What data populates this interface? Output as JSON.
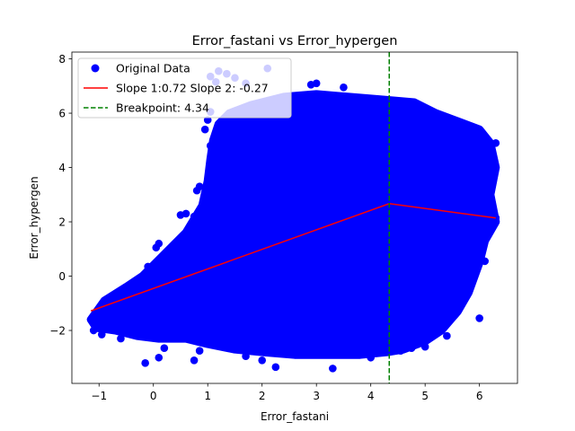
{
  "chart_data": {
    "type": "scatter",
    "title": "Error_fastani vs Error_hypergen",
    "xlabel": "Error_fastani",
    "ylabel": "Error_hypergen",
    "xlim": [
      -1.5,
      6.7
    ],
    "ylim": [
      -3.95,
      8.25
    ],
    "xticks": [
      -1,
      0,
      1,
      2,
      3,
      4,
      5,
      6
    ],
    "yticks": [
      -2,
      0,
      2,
      4,
      6,
      8
    ],
    "grid": false,
    "legend_position": "top-left",
    "colors": {
      "points": "#0000ff",
      "fit": "#ff0000",
      "breakpoint": "#008000"
    },
    "legend": [
      {
        "label": "Original Data",
        "kind": "marker",
        "color": "#0000ff"
      },
      {
        "label": "Slope 1:0.72 Slope 2: -0.27",
        "kind": "line",
        "color": "#ff0000"
      },
      {
        "label": "Breakpoint: 4.34",
        "kind": "dashed",
        "color": "#008000"
      }
    ],
    "fit_line": {
      "x": [
        -1.15,
        4.34,
        6.3
      ],
      "y": [
        -1.28,
        2.67,
        2.14
      ]
    },
    "breakpoint": 4.34,
    "point_cloud_outline": [
      [
        -1.15,
        -1.6
      ],
      [
        -0.9,
        -0.9
      ],
      [
        -0.5,
        -0.4
      ],
      [
        -0.2,
        0.0
      ],
      [
        0.2,
        0.8
      ],
      [
        0.6,
        1.6
      ],
      [
        0.9,
        2.6
      ],
      [
        1.0,
        3.5
      ],
      [
        1.05,
        4.3
      ],
      [
        1.1,
        5.0
      ],
      [
        1.2,
        5.6
      ],
      [
        1.4,
        6.0
      ],
      [
        1.8,
        6.3
      ],
      [
        2.4,
        6.6
      ],
      [
        3.0,
        6.7
      ],
      [
        3.6,
        6.6
      ],
      [
        4.2,
        6.5
      ],
      [
        4.8,
        6.4
      ],
      [
        5.2,
        6.0
      ],
      [
        5.6,
        5.7
      ],
      [
        6.0,
        5.4
      ],
      [
        6.2,
        4.9
      ],
      [
        6.3,
        4.0
      ],
      [
        6.2,
        3.0
      ],
      [
        6.3,
        2.0
      ],
      [
        6.1,
        1.3
      ],
      [
        6.0,
        0.5
      ],
      [
        5.8,
        -0.6
      ],
      [
        5.6,
        -1.3
      ],
      [
        5.3,
        -2.0
      ],
      [
        5.0,
        -2.4
      ],
      [
        4.6,
        -2.7
      ],
      [
        4.3,
        -2.8
      ],
      [
        3.8,
        -2.9
      ],
      [
        3.2,
        -2.9
      ],
      [
        2.6,
        -2.9
      ],
      [
        2.0,
        -2.8
      ],
      [
        1.5,
        -2.7
      ],
      [
        1.0,
        -2.5
      ],
      [
        0.6,
        -2.3
      ],
      [
        0.1,
        -2.3
      ],
      [
        -0.3,
        -2.2
      ],
      [
        -0.7,
        -2.0
      ],
      [
        -1.05,
        -1.9
      ]
    ],
    "outlier_points": [
      [
        1.2,
        7.55
      ],
      [
        1.35,
        7.45
      ],
      [
        1.5,
        7.3
      ],
      [
        2.1,
        7.65
      ],
      [
        1.15,
        7.15
      ],
      [
        1.7,
        7.1
      ],
      [
        1.05,
        7.35
      ],
      [
        2.9,
        7.05
      ],
      [
        3.0,
        7.1
      ],
      [
        3.5,
        6.95
      ],
      [
        6.3,
        4.9
      ],
      [
        6.3,
        2.15
      ],
      [
        6.05,
        1.75
      ],
      [
        6.1,
        0.55
      ],
      [
        6.0,
        -1.55
      ],
      [
        5.4,
        -2.2
      ],
      [
        5.0,
        -2.6
      ],
      [
        4.75,
        -2.65
      ],
      [
        4.55,
        -2.75
      ],
      [
        4.0,
        -3.0
      ],
      [
        3.3,
        -3.4
      ],
      [
        2.25,
        -3.35
      ],
      [
        2.0,
        -3.1
      ],
      [
        1.7,
        -2.95
      ],
      [
        0.75,
        -3.1
      ],
      [
        -0.15,
        -3.2
      ],
      [
        0.2,
        -2.65
      ],
      [
        0.1,
        -3.0
      ],
      [
        0.85,
        -2.75
      ],
      [
        -1.1,
        -2.0
      ],
      [
        -1.15,
        -1.6
      ],
      [
        -0.95,
        -2.15
      ],
      [
        -0.6,
        -2.3
      ],
      [
        -0.5,
        -0.4
      ],
      [
        -0.25,
        -0.1
      ],
      [
        -0.1,
        0.35
      ],
      [
        0.2,
        0.25
      ],
      [
        0.05,
        1.05
      ],
      [
        0.1,
        1.2
      ],
      [
        0.5,
        2.25
      ],
      [
        0.6,
        2.3
      ],
      [
        0.75,
        2.2
      ],
      [
        0.8,
        3.15
      ],
      [
        0.85,
        3.3
      ],
      [
        1.05,
        4.8
      ],
      [
        0.95,
        5.4
      ],
      [
        1.0,
        5.75
      ],
      [
        1.05,
        6.05
      ]
    ]
  }
}
